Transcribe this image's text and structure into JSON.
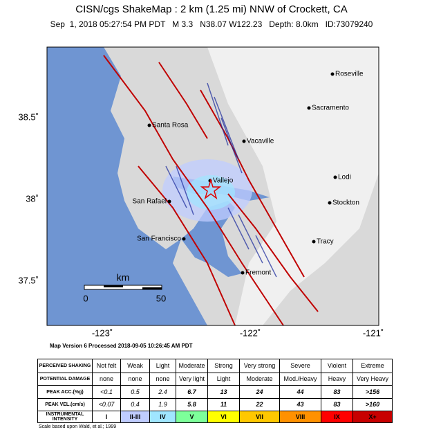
{
  "header": {
    "title": "CISN/cgs ShakeMap : 2 km (1.25 mi) NNW of Crockett, CA",
    "subtitle": "Sep  1, 2018 05:27:54 PM PDT   M 3.3   N38.07 W122.23   Depth: 8.0km   ID:73079240"
  },
  "map": {
    "lat_labels": [
      "38.5˚",
      "38˚",
      "37.5˚"
    ],
    "lon_labels": [
      "-123˚",
      "-122˚",
      "-121˚"
    ],
    "cities": [
      "Roseville",
      "Sacramento",
      "Santa Rosa",
      "Vacaville",
      "Vallejo",
      "Lodi",
      "San Rafael",
      "Stockton",
      "San Francisco",
      "Tracy",
      "Fremont"
    ],
    "scale": {
      "title": "km",
      "labels": [
        "0",
        "50"
      ]
    },
    "version_note": "Map Version 6 Processed 2018-09-05 10:26:45 AM PDT"
  },
  "legend_table": {
    "row_headers": [
      "PERCEIVED SHAKING",
      "POTENTIAL DAMAGE",
      "PEAK ACC.(%g)",
      "PEAK VEL.(cm/s)",
      "INSTRUMENTAL INTENSITY"
    ],
    "rows": [
      [
        "Not felt",
        "Weak",
        "Light",
        "Moderate",
        "Strong",
        "Very strong",
        "Severe",
        "Violent",
        "Extreme"
      ],
      [
        "none",
        "none",
        "none",
        "Very light",
        "Light",
        "Moderate",
        "Mod./Heavy",
        "Heavy",
        "Very Heavy"
      ],
      [
        "<0.1",
        "0.5",
        "2.4",
        "6.7",
        "13",
        "24",
        "44",
        "83",
        ">156"
      ],
      [
        "<0.07",
        "0.4",
        "1.9",
        "5.8",
        "11",
        "22",
        "43",
        "83",
        ">160"
      ],
      [
        "I",
        "II-III",
        "IV",
        "V",
        "VI",
        "VII",
        "VIII",
        "IX",
        "X+"
      ]
    ],
    "intensity_colors": [
      "#ffffff",
      "#bfccff",
      "#a0e6ff",
      "#7dff9a",
      "#ffff00",
      "#ffc800",
      "#ff9100",
      "#ff0000",
      "#c80000"
    ]
  },
  "footer": "Scale based upon Wald, et al.; 1999"
}
